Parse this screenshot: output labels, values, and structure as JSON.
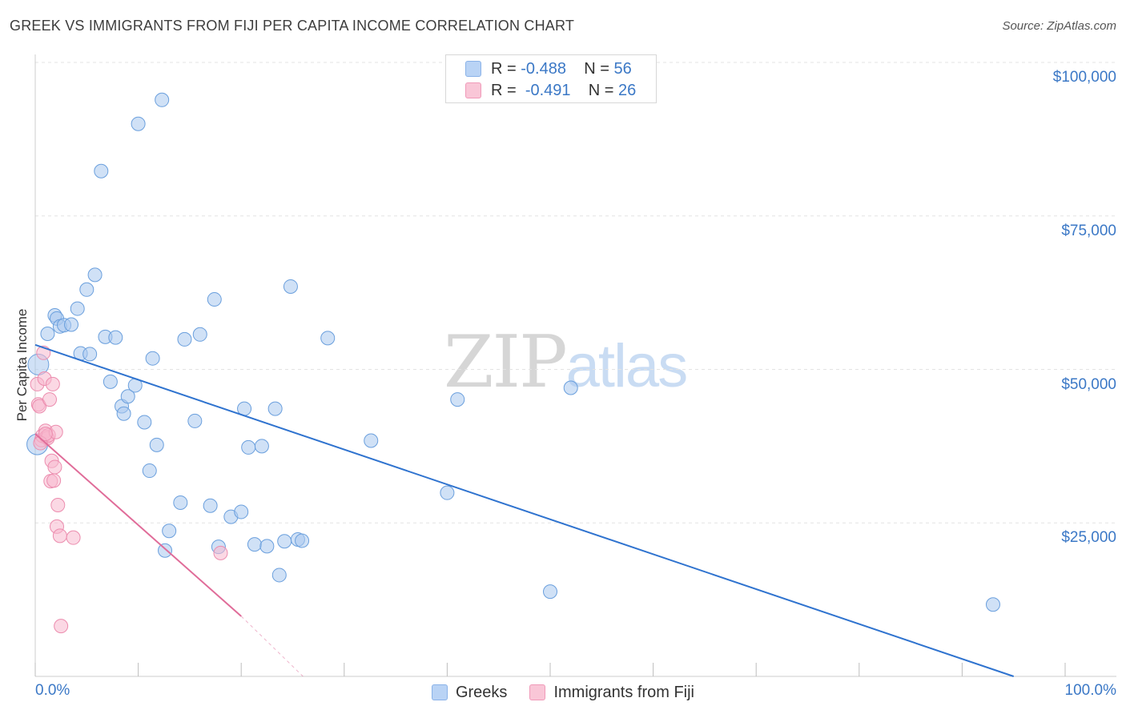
{
  "title": "GREEK VS IMMIGRANTS FROM FIJI PER CAPITA INCOME CORRELATION CHART",
  "source": "Source: ZipAtlas.com",
  "watermark": {
    "zip": "ZIP",
    "atlas": "atlas"
  },
  "legend_top": [
    {
      "r_label": "R =",
      "r_value": "-0.488",
      "n_label": "N =",
      "n_value": "56"
    },
    {
      "r_label": "R =",
      "r_value": "-0.491",
      "n_label": "N =",
      "n_value": "26"
    }
  ],
  "legend_bottom": {
    "greeks": "Greeks",
    "fiji": "Immigrants from Fiji"
  },
  "colors": {
    "greeks_fill": "#a9c8ee",
    "greeks_stroke": "#6a9fdd",
    "greeks_line": "#2f73cf",
    "fiji_fill": "#f7b8cd",
    "fiji_stroke": "#ec8cae",
    "fiji_line": "#e06c99",
    "tick_text": "#3b78c6",
    "grid": "#e3e3e3"
  },
  "chart_data": {
    "type": "scatter",
    "title": "GREEK VS IMMIGRANTS FROM FIJI PER CAPITA INCOME CORRELATION CHART",
    "xlabel": "",
    "ylabel": "Per Capita Income",
    "xlim": [
      0,
      100
    ],
    "ylim": [
      0,
      105000
    ],
    "x_tick_labels": [
      "0.0%",
      "100.0%"
    ],
    "y_ticks": [
      25000,
      50000,
      75000,
      100000
    ],
    "y_tick_labels": [
      "$25,000",
      "$50,000",
      "$75,000",
      "$100,000"
    ],
    "grid": true,
    "series": [
      {
        "name": "Greeks",
        "r": -0.488,
        "n": 56,
        "trend": {
          "x": [
            0,
            95
          ],
          "y": [
            54000,
            0
          ]
        },
        "points": [
          [
            1.2,
            55800
          ],
          [
            1.9,
            58800
          ],
          [
            2.1,
            58300
          ],
          [
            2.4,
            57000
          ],
          [
            2.8,
            57200
          ],
          [
            3.5,
            57300
          ],
          [
            4.1,
            59900
          ],
          [
            4.4,
            52600
          ],
          [
            5.0,
            63000
          ],
          [
            5.3,
            52500
          ],
          [
            5.8,
            65400
          ],
          [
            6.4,
            82300
          ],
          [
            6.8,
            55300
          ],
          [
            7.3,
            48000
          ],
          [
            7.8,
            55200
          ],
          [
            8.4,
            44000
          ],
          [
            8.6,
            42800
          ],
          [
            9.0,
            45600
          ],
          [
            9.7,
            47400
          ],
          [
            10.0,
            90000
          ],
          [
            10.6,
            41400
          ],
          [
            11.1,
            33500
          ],
          [
            11.4,
            51800
          ],
          [
            11.8,
            37700
          ],
          [
            12.3,
            93900
          ],
          [
            12.6,
            20500
          ],
          [
            13.0,
            23700
          ],
          [
            14.1,
            28300
          ],
          [
            14.5,
            54900
          ],
          [
            15.5,
            41600
          ],
          [
            16.0,
            55700
          ],
          [
            17.0,
            27800
          ],
          [
            17.4,
            61400
          ],
          [
            17.8,
            21100
          ],
          [
            19.0,
            26000
          ],
          [
            20.0,
            26800
          ],
          [
            20.3,
            43600
          ],
          [
            20.7,
            37300
          ],
          [
            21.3,
            21500
          ],
          [
            22.0,
            37500
          ],
          [
            22.5,
            21200
          ],
          [
            23.3,
            43600
          ],
          [
            23.7,
            16500
          ],
          [
            24.2,
            22000
          ],
          [
            24.8,
            63500
          ],
          [
            25.5,
            22300
          ],
          [
            25.9,
            22100
          ],
          [
            28.4,
            55100
          ],
          [
            32.6,
            38400
          ],
          [
            40.0,
            29900
          ],
          [
            41.0,
            45100
          ],
          [
            50.0,
            13800
          ],
          [
            52.0,
            47000
          ],
          [
            93.0,
            11700
          ],
          [
            0.3,
            50800
          ],
          [
            0.2,
            37800
          ]
        ]
      },
      {
        "name": "Immigrants from Fiji",
        "r": -0.491,
        "n": 26,
        "trend": {
          "x": [
            0,
            20
          ],
          "y": [
            39500,
            9800
          ]
        },
        "trend_dashed": {
          "x": [
            20,
            26
          ],
          "y": [
            9800,
            0
          ]
        },
        "points": [
          [
            0.2,
            47600
          ],
          [
            0.3,
            44300
          ],
          [
            0.4,
            44000
          ],
          [
            0.6,
            38500
          ],
          [
            0.7,
            39200
          ],
          [
            0.8,
            52700
          ],
          [
            0.9,
            48500
          ],
          [
            1.0,
            40000
          ],
          [
            1.1,
            39000
          ],
          [
            1.2,
            38800
          ],
          [
            1.3,
            39300
          ],
          [
            1.4,
            45100
          ],
          [
            1.5,
            31800
          ],
          [
            1.6,
            35100
          ],
          [
            1.7,
            47600
          ],
          [
            1.8,
            31900
          ],
          [
            1.9,
            34100
          ],
          [
            2.0,
            39800
          ],
          [
            2.1,
            24400
          ],
          [
            2.2,
            27900
          ],
          [
            2.4,
            22900
          ],
          [
            2.5,
            8200
          ],
          [
            3.7,
            22600
          ],
          [
            18.0,
            20100
          ],
          [
            0.5,
            38000
          ],
          [
            1.0,
            39500
          ]
        ]
      }
    ]
  }
}
